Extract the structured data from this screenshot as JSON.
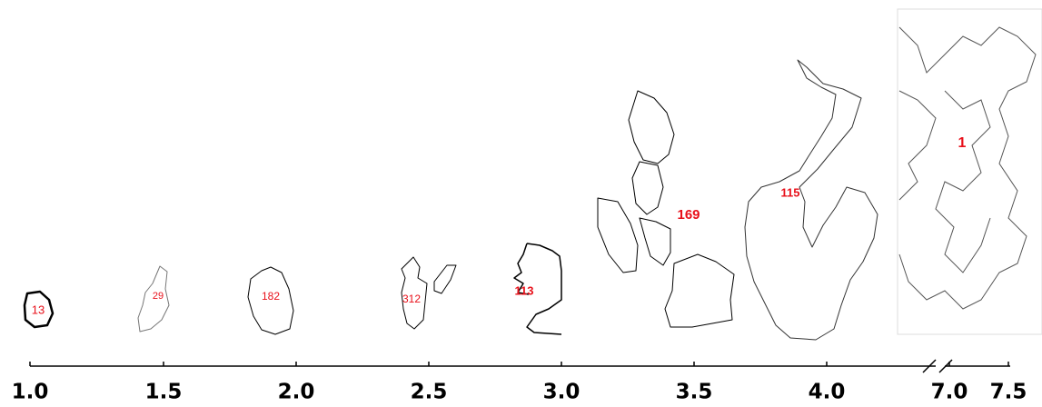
{
  "shapes": [
    {
      "label": "13"
    },
    {
      "label": "29"
    },
    {
      "label": "182"
    },
    {
      "label": "312"
    },
    {
      "label": "113"
    },
    {
      "label": "169"
    },
    {
      "label": "115"
    },
    {
      "label": "1"
    }
  ],
  "axis": {
    "ticks": [
      "1.0",
      "1.5",
      "2.0",
      "2.5",
      "3.0",
      "3.5",
      "4.0",
      "7.0",
      "7.5"
    ]
  }
}
